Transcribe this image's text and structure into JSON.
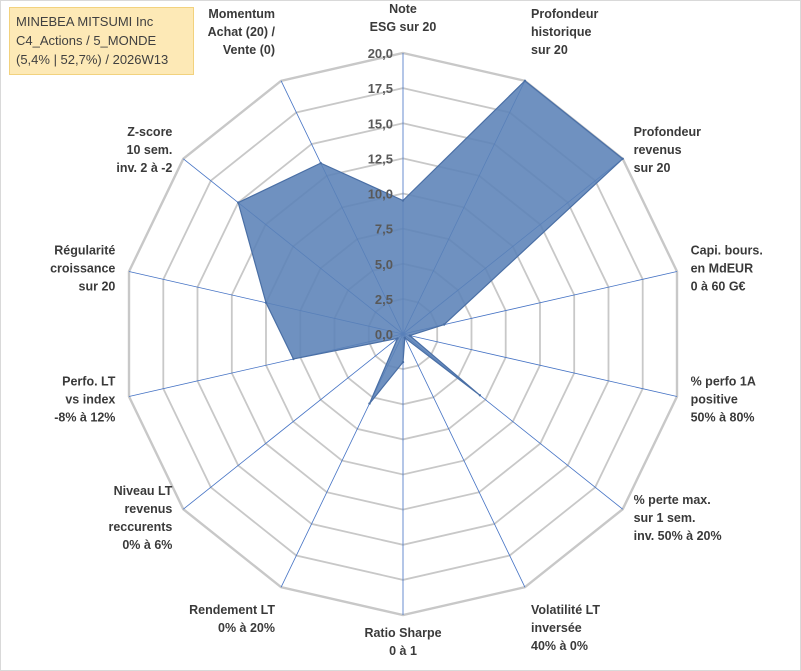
{
  "title": {
    "line1": "MINEBEA MITSUMI Inc",
    "line2": "C4_Actions / 5_MONDE",
    "line3": "(5,4% | 52,7%) / 2026W13"
  },
  "colors": {
    "fill": "#5b82b7",
    "stroke": "#4a6fa5",
    "grid": "#c8c8c8",
    "spoke": "#4472c4"
  },
  "chart_data": {
    "type": "radar",
    "rmax": 20,
    "ticks": [
      "0,0",
      "2,5",
      "5,0",
      "7,5",
      "10,0",
      "12,5",
      "15,0",
      "17,5",
      "20,0"
    ],
    "tick_values": [
      0,
      2.5,
      5,
      7.5,
      10,
      12.5,
      15,
      17.5,
      20
    ],
    "categories": [
      {
        "lines": [
          "Note",
          "ESG sur 20"
        ],
        "value": 9.5
      },
      {
        "lines": [
          "Profondeur",
          "historique",
          "sur 20"
        ],
        "value": 20
      },
      {
        "lines": [
          "Profondeur",
          "revenus",
          "sur 20"
        ],
        "value": 20
      },
      {
        "lines": [
          "Capi. bours.",
          "en MdEUR",
          "0 à 60 G€"
        ],
        "value": 3
      },
      {
        "lines": [
          "% perfo 1A",
          "positive",
          "50% à 80%"
        ],
        "value": 0.5
      },
      {
        "lines": [
          "% perte max.",
          "sur 1 sem.",
          "inv. 50% à 20%"
        ],
        "value": 7
      },
      {
        "lines": [
          "Volatilité LT",
          "inversée",
          "40% à 0%"
        ],
        "value": 0.3
      },
      {
        "lines": [
          "Ratio Sharpe",
          "0 à 1"
        ],
        "value": 2
      },
      {
        "lines": [
          "Rendement LT",
          "0% à 20%"
        ],
        "value": 5.5
      },
      {
        "lines": [
          "Niveau LT",
          "revenus",
          "reccurents",
          "0% à 6%"
        ],
        "value": 0.5
      },
      {
        "lines": [
          "Perfo. LT",
          "vs index",
          "-8% à 12%"
        ],
        "value": 8
      },
      {
        "lines": [
          "Régularité",
          "croissance",
          "sur 20"
        ],
        "value": 10
      },
      {
        "lines": [
          "Z-score",
          "10 sem.",
          "inv. 2 à -2"
        ],
        "value": 15
      },
      {
        "lines": [
          "Momentum",
          "Achat (20) /",
          "Vente (0)"
        ],
        "value": 13.5
      }
    ]
  }
}
